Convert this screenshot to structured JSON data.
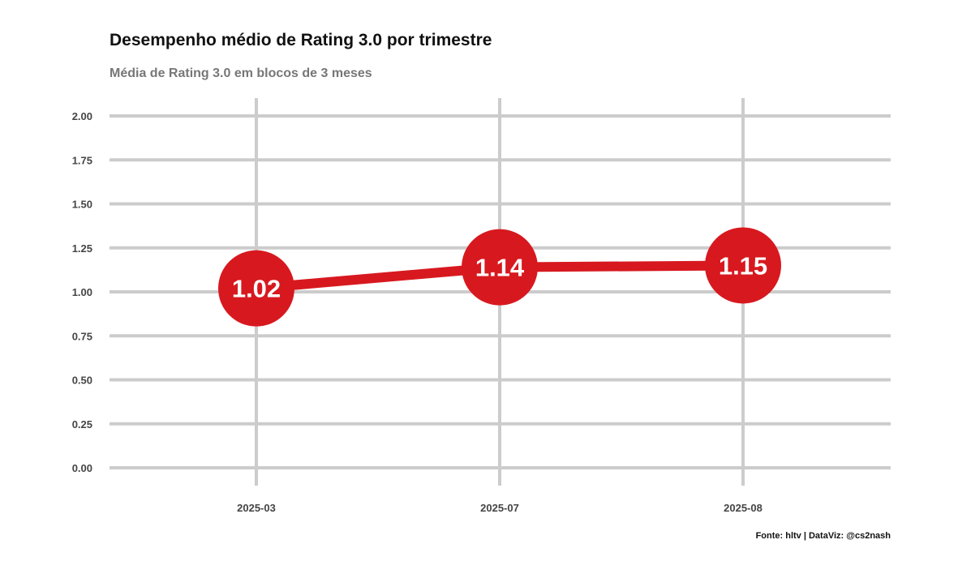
{
  "chart_data": {
    "type": "line",
    "title": "Desempenho médio de Rating 3.0 por trimestre",
    "subtitle": "Média de Rating 3.0 em blocos de 3 meses",
    "categories": [
      "2025-03",
      "2025-07",
      "2025-08"
    ],
    "series": [
      {
        "values": [
          1.02,
          1.14,
          1.15
        ],
        "color": "#d7191f"
      }
    ],
    "data_labels": [
      "1.02",
      "1.14",
      "1.15"
    ],
    "ylim": [
      0,
      2
    ],
    "yticks": [
      "0.00",
      "0.25",
      "0.50",
      "0.75",
      "1.00",
      "1.25",
      "1.50",
      "1.75",
      "2.00"
    ],
    "grid": true,
    "caption": "Fonte: hltv  | DataViz: @cs2nash",
    "colors": {
      "line": "#d7191f",
      "grid": "#cccccc"
    }
  }
}
